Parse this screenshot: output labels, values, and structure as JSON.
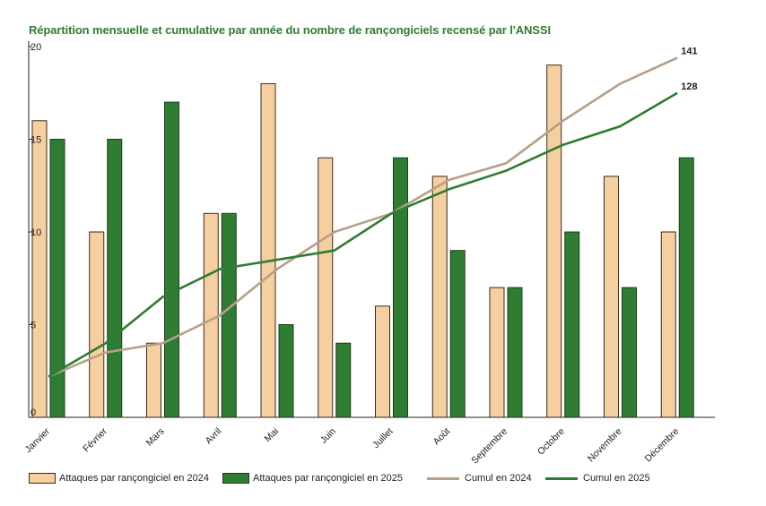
{
  "title": "Répartition mensuelle et cumulative par année du nombre de rançongiciels recensé par l'ANSSI",
  "colors": {
    "bars_2024": "#f5cfa0",
    "bars_2024_border": "#3a2a1a",
    "bars_2025": "#2e7d32",
    "bars_2025_border": "#1b3d1d",
    "cumul_2024": "#b5a088",
    "cumul_2025": "#2e7d32",
    "title": "#2e7d32",
    "axis": "#222222"
  },
  "chart_data": {
    "type": "bar",
    "title": "Répartition mensuelle et cumulative par année du nombre de rançongiciels recensé par l'ANSSI",
    "xlabel": "",
    "ylabel": "",
    "ylim": [
      0,
      20
    ],
    "yticks": [
      "0",
      "5",
      "10",
      "15",
      "20"
    ],
    "grid": false,
    "legend_position": "bottom",
    "categories": [
      "Janvier",
      "Février",
      "Mars",
      "Avril",
      "Mai",
      "Juin",
      "Juillet",
      "Août",
      "Septembre",
      "Octobre",
      "Novembre",
      "Décembre"
    ],
    "series": [
      {
        "name": "Attaques par rançongiciel en 2024",
        "kind": "bar",
        "values": [
          16,
          10,
          4,
          11,
          18,
          14,
          6,
          13,
          7,
          19,
          13,
          10
        ]
      },
      {
        "name": "Attaques par rançongiciel en 2025",
        "kind": "bar",
        "values": [
          15,
          15,
          17,
          11,
          5,
          4,
          14,
          9,
          7,
          10,
          7,
          14
        ]
      },
      {
        "name": "Cumul en 2024",
        "kind": "line",
        "values": [
          2.2,
          3.5,
          4,
          5.5,
          8,
          10,
          11,
          12.8,
          13.7,
          16,
          18,
          19.4
        ]
      },
      {
        "name": "Cumul en 2025",
        "kind": "line",
        "values": [
          2.2,
          4,
          6.5,
          8,
          8.5,
          9,
          11,
          12.3,
          13.3,
          14.7,
          15.7,
          17.5
        ]
      }
    ],
    "end_labels": {
      "cumul_2024": "141",
      "cumul_2025": "128"
    }
  },
  "legend": [
    {
      "label": "Attaques par rançongiciel en 2024",
      "kind": "box",
      "color_key": "bars_2024"
    },
    {
      "label": "Attaques par rançongiciel en 2025",
      "kind": "box",
      "color_key": "bars_2025"
    },
    {
      "label": "Cumul en 2024",
      "kind": "line",
      "color_key": "cumul_2024"
    },
    {
      "label": "Cumul en 2025",
      "kind": "line",
      "color_key": "cumul_2025"
    }
  ]
}
